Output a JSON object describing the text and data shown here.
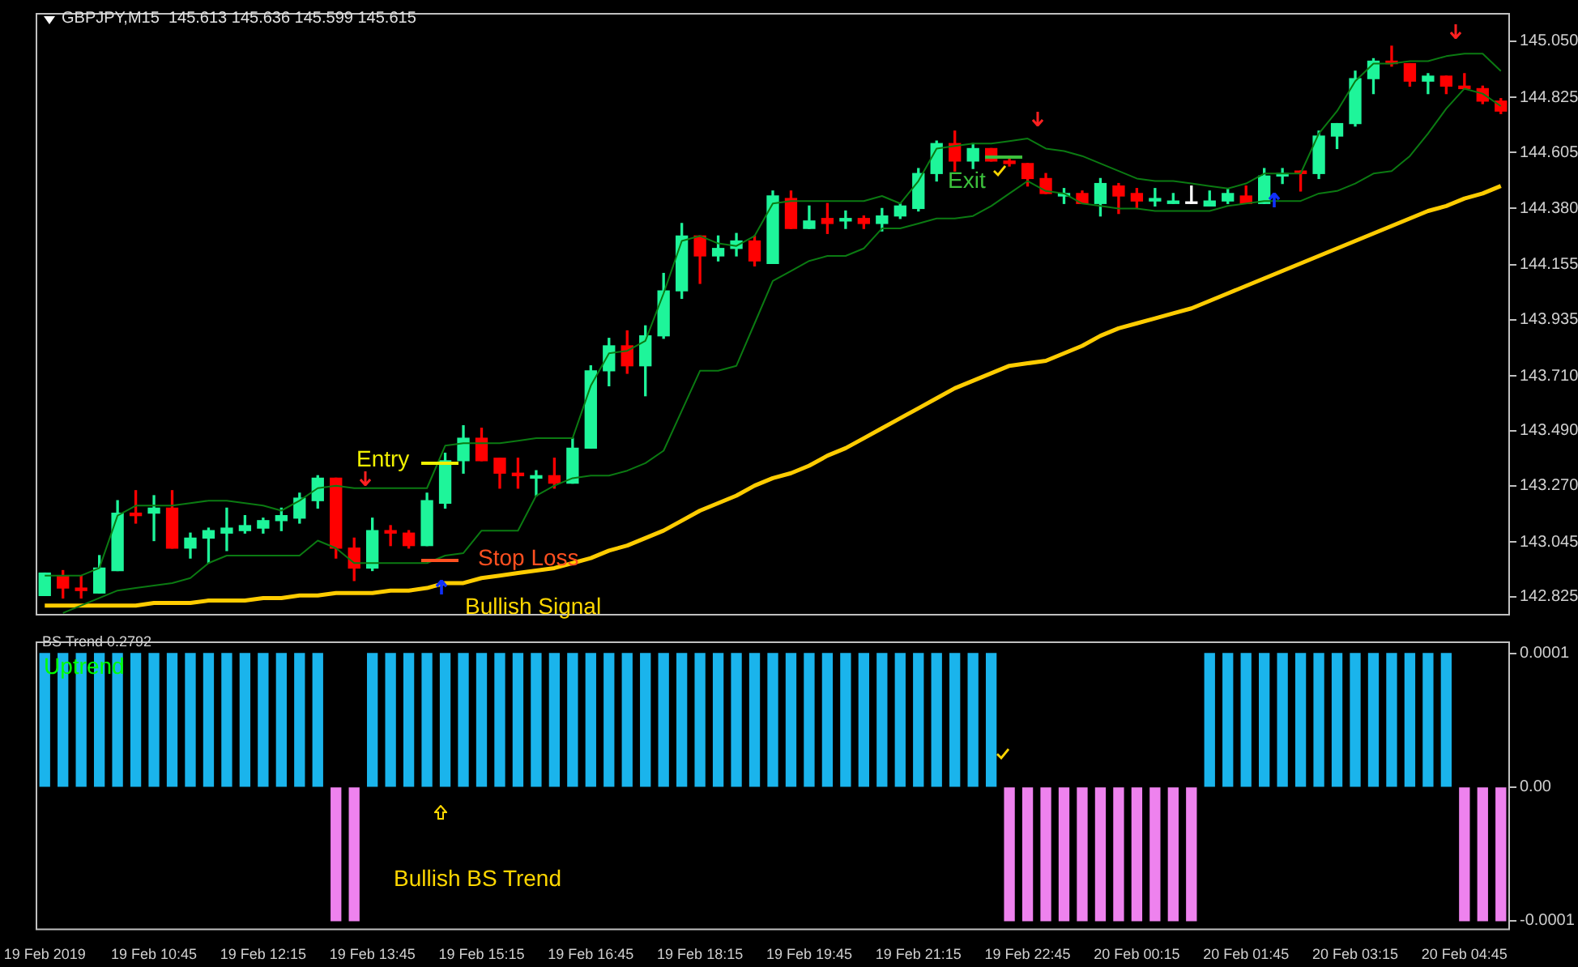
{
  "chart_data": [
    {
      "type": "candlestick",
      "ohlc": [
        [
          142.83,
          142.92,
          142.83,
          142.92
        ],
        [
          142.91,
          142.93,
          142.82,
          142.86
        ],
        [
          142.86,
          142.91,
          142.82,
          142.85
        ],
        [
          142.84,
          142.99,
          142.84,
          142.94
        ],
        [
          142.93,
          143.21,
          142.93,
          143.16
        ],
        [
          143.16,
          143.25,
          143.12,
          143.15
        ],
        [
          143.16,
          143.23,
          143.05,
          143.18
        ],
        [
          143.18,
          143.25,
          143.02,
          143.02
        ],
        [
          143.02,
          143.08,
          142.98,
          143.06
        ],
        [
          143.06,
          143.1,
          142.96,
          143.09
        ],
        [
          143.08,
          143.18,
          143.01,
          143.1
        ],
        [
          143.09,
          143.15,
          143.08,
          143.11
        ],
        [
          143.1,
          143.14,
          143.08,
          143.13
        ],
        [
          143.13,
          143.18,
          143.09,
          143.15
        ],
        [
          143.14,
          143.24,
          143.12,
          143.22
        ],
        [
          143.21,
          143.31,
          143.18,
          143.3
        ],
        [
          143.3,
          143.3,
          142.98,
          143.02
        ],
        [
          143.02,
          143.06,
          142.89,
          142.94
        ],
        [
          142.94,
          143.14,
          142.93,
          143.09
        ],
        [
          143.09,
          143.11,
          143.03,
          143.08
        ],
        [
          143.08,
          143.09,
          143.02,
          143.03
        ],
        [
          143.03,
          143.24,
          143.03,
          143.21
        ],
        [
          143.2,
          143.4,
          143.18,
          143.37
        ],
        [
          143.37,
          143.51,
          143.32,
          143.46
        ],
        [
          143.46,
          143.5,
          143.37,
          143.37
        ],
        [
          143.38,
          143.38,
          143.26,
          143.32
        ],
        [
          143.32,
          143.38,
          143.26,
          143.31
        ],
        [
          143.3,
          143.33,
          143.23,
          143.31
        ],
        [
          143.31,
          143.38,
          143.26,
          143.28
        ],
        [
          143.28,
          143.46,
          143.28,
          143.42
        ],
        [
          143.42,
          143.75,
          143.42,
          143.73
        ],
        [
          143.73,
          143.86,
          143.67,
          143.83
        ],
        [
          143.83,
          143.89,
          143.72,
          143.75
        ],
        [
          143.75,
          143.91,
          143.63,
          143.87
        ],
        [
          143.87,
          144.12,
          143.86,
          144.05
        ],
        [
          144.05,
          144.32,
          144.02,
          144.27
        ],
        [
          144.27,
          144.27,
          144.08,
          144.19
        ],
        [
          144.19,
          144.27,
          144.17,
          144.22
        ],
        [
          144.22,
          144.28,
          144.19,
          144.25
        ],
        [
          144.25,
          144.27,
          144.15,
          144.17
        ],
        [
          144.16,
          144.45,
          144.16,
          144.43
        ],
        [
          144.42,
          144.45,
          144.3,
          144.3
        ],
        [
          144.3,
          144.39,
          144.3,
          144.33
        ],
        [
          144.34,
          144.4,
          144.28,
          144.32
        ],
        [
          144.33,
          144.37,
          144.3,
          144.34
        ],
        [
          144.34,
          144.35,
          144.3,
          144.32
        ],
        [
          144.32,
          144.38,
          144.29,
          144.35
        ],
        [
          144.35,
          144.4,
          144.34,
          144.39
        ],
        [
          144.38,
          144.54,
          144.37,
          144.52
        ],
        [
          144.52,
          144.65,
          144.49,
          144.64
        ],
        [
          144.64,
          144.69,
          144.53,
          144.57
        ],
        [
          144.57,
          144.64,
          144.54,
          144.62
        ],
        [
          144.62,
          144.62,
          144.57,
          144.57
        ],
        [
          144.57,
          144.59,
          144.55,
          144.56
        ],
        [
          144.56,
          144.56,
          144.47,
          144.5
        ],
        [
          144.5,
          144.52,
          144.44,
          144.44
        ],
        [
          144.43,
          144.46,
          144.4,
          144.44
        ],
        [
          144.44,
          144.45,
          144.4,
          144.4
        ],
        [
          144.4,
          144.5,
          144.35,
          144.48
        ],
        [
          144.47,
          144.48,
          144.36,
          144.43
        ],
        [
          144.44,
          144.46,
          144.38,
          144.41
        ],
        [
          144.41,
          144.46,
          144.39,
          144.42
        ],
        [
          144.4,
          144.44,
          144.4,
          144.41
        ],
        [
          144.4,
          144.47,
          144.4,
          144.4
        ],
        [
          144.39,
          144.45,
          144.39,
          144.41
        ],
        [
          144.41,
          144.46,
          144.4,
          144.44
        ],
        [
          144.43,
          144.47,
          144.4,
          144.4
        ],
        [
          144.4,
          144.54,
          144.4,
          144.51
        ],
        [
          144.51,
          144.54,
          144.48,
          144.52
        ],
        [
          144.53,
          144.53,
          144.45,
          144.52
        ],
        [
          144.52,
          144.69,
          144.5,
          144.67
        ],
        [
          144.67,
          144.72,
          144.62,
          144.72
        ],
        [
          144.72,
          144.93,
          144.71,
          144.9
        ],
        [
          144.9,
          144.98,
          144.84,
          144.97
        ],
        [
          144.97,
          145.03,
          144.95,
          144.96
        ],
        [
          144.96,
          144.96,
          144.87,
          144.89
        ],
        [
          144.89,
          144.92,
          144.84,
          144.91
        ],
        [
          144.91,
          144.91,
          144.84,
          144.87
        ],
        [
          144.87,
          144.92,
          144.86,
          144.86
        ],
        [
          144.86,
          144.87,
          144.8,
          144.81
        ],
        [
          144.81,
          144.82,
          144.76,
          144.77
        ]
      ],
      "colors": [
        "#1ef59a",
        "#ff0000",
        "#ff0000",
        "#1ef59a",
        "#1ef59a",
        "#ff0000",
        "#1ef59a",
        "#ff0000",
        "#1ef59a",
        "#1ef59a",
        "#1ef59a",
        "#1ef59a",
        "#1ef59a",
        "#1ef59a",
        "#1ef59a",
        "#1ef59a",
        "#ff0000",
        "#ff0000",
        "#1ef59a",
        "#ff0000",
        "#ff0000",
        "#1ef59a",
        "#1ef59a",
        "#1ef59a",
        "#ff0000",
        "#ff0000",
        "#ff0000",
        "#1ef59a",
        "#ff0000",
        "#1ef59a",
        "#1ef59a",
        "#1ef59a",
        "#ff0000",
        "#1ef59a",
        "#1ef59a",
        "#1ef59a",
        "#ff0000",
        "#1ef59a",
        "#1ef59a",
        "#ff0000",
        "#1ef59a",
        "#ff0000",
        "#1ef59a",
        "#ff0000",
        "#1ef59a",
        "#ff0000",
        "#1ef59a",
        "#1ef59a",
        "#1ef59a",
        "#1ef59a",
        "#ff0000",
        "#1ef59a",
        "#ff0000",
        "#ff0000",
        "#ff0000",
        "#ff0000",
        "#1ef59a",
        "#ff0000",
        "#1ef59a",
        "#ff0000",
        "#ff0000",
        "#1ef59a",
        "#1ef59a",
        "#ffffff",
        "#1ef59a",
        "#1ef59a",
        "#ff0000",
        "#1ef59a",
        "#1ef59a",
        "#ff0000",
        "#1ef59a",
        "#1ef59a",
        "#1ef59a",
        "#1ef59a",
        "#ff0000",
        "#ff0000",
        "#1ef59a",
        "#ff0000",
        "#ff0000",
        "#ff0000",
        "#ff0000"
      ],
      "series": [
        {
          "type": "line",
          "color": "#0b7a12",
          "values": [
            142.91,
            142.91,
            142.91,
            142.94,
            143.15,
            143.19,
            143.19,
            143.19,
            143.2,
            143.21,
            143.21,
            143.2,
            143.19,
            143.17,
            143.21,
            143.26,
            143.27,
            143.26,
            143.26,
            143.26,
            143.26,
            143.26,
            143.43,
            143.44,
            143.44,
            143.44,
            143.45,
            143.46,
            143.46,
            143.46,
            143.67,
            143.8,
            143.81,
            143.85,
            144.04,
            144.25,
            144.27,
            144.24,
            144.23,
            144.27,
            144.4,
            144.41,
            144.41,
            144.41,
            144.41,
            144.41,
            144.43,
            144.4,
            144.49,
            144.62,
            144.63,
            144.64,
            144.64,
            144.65,
            144.66,
            144.62,
            144.61,
            144.59,
            144.56,
            144.53,
            144.5,
            144.49,
            144.49,
            144.48,
            144.47,
            144.46,
            144.48,
            144.52,
            144.52,
            144.52,
            144.68,
            144.77,
            144.89,
            144.96,
            144.96,
            144.97,
            144.97,
            144.99,
            145.0,
            145.0,
            144.93
          ]
        },
        {
          "type": "line",
          "color": "#0b7a12",
          "values": [
            null,
            142.76,
            142.79,
            142.82,
            142.85,
            142.86,
            142.87,
            142.88,
            142.9,
            142.96,
            142.99,
            142.99,
            142.99,
            142.99,
            142.99,
            143.05,
            143.02,
            142.96,
            142.96,
            142.96,
            142.96,
            142.96,
            142.99,
            143.0,
            143.09,
            143.09,
            143.09,
            143.23,
            143.27,
            143.3,
            143.31,
            143.31,
            143.33,
            143.36,
            143.41,
            143.57,
            143.73,
            143.73,
            143.75,
            143.92,
            144.09,
            144.13,
            144.17,
            144.19,
            144.19,
            144.22,
            144.3,
            144.3,
            144.32,
            144.34,
            144.34,
            144.35,
            144.39,
            144.44,
            144.49,
            144.45,
            144.44,
            144.4,
            144.39,
            144.38,
            144.38,
            144.37,
            144.37,
            144.37,
            144.37,
            144.39,
            144.4,
            144.41,
            144.41,
            144.41,
            144.44,
            144.45,
            144.48,
            144.52,
            144.53,
            144.59,
            144.68,
            144.78,
            144.86,
            144.84,
            144.79
          ]
        },
        {
          "type": "line",
          "color": "#ffcc00",
          "values": [
            142.79,
            142.79,
            142.79,
            142.79,
            142.79,
            142.79,
            142.8,
            142.8,
            142.8,
            142.81,
            142.81,
            142.81,
            142.82,
            142.82,
            142.83,
            142.83,
            142.84,
            142.84,
            142.84,
            142.85,
            142.85,
            142.86,
            142.88,
            142.88,
            142.9,
            142.91,
            142.92,
            142.93,
            142.94,
            142.96,
            142.98,
            143.01,
            143.03,
            143.06,
            143.09,
            143.13,
            143.17,
            143.2,
            143.23,
            143.27,
            143.3,
            143.32,
            143.35,
            143.39,
            143.42,
            143.46,
            143.5,
            143.54,
            143.58,
            143.62,
            143.66,
            143.69,
            143.72,
            143.75,
            143.76,
            143.77,
            143.8,
            143.83,
            143.87,
            143.9,
            143.92,
            143.94,
            143.96,
            143.98,
            144.01,
            144.04,
            144.07,
            144.1,
            144.13,
            144.16,
            144.19,
            144.22,
            144.25,
            144.28,
            144.31,
            144.34,
            144.37,
            144.39,
            144.42,
            144.44,
            144.47
          ]
        }
      ],
      "ylim": [
        142.75,
        145.163
      ],
      "yticks": [
        {
          "value": 142.825,
          "label": "142.825"
        },
        {
          "value": 143.045,
          "label": "143.045"
        },
        {
          "value": 143.27,
          "label": "143.270"
        },
        {
          "value": 143.49,
          "label": "143.490"
        },
        {
          "value": 143.71,
          "label": "143.710"
        },
        {
          "value": 143.935,
          "label": "143.935"
        },
        {
          "value": 144.155,
          "label": "144.155"
        },
        {
          "value": 144.38,
          "label": "144.380"
        },
        {
          "value": 144.605,
          "label": "144.605"
        },
        {
          "value": 144.825,
          "label": "144.825"
        },
        {
          "value": 145.05,
          "label": "145.050"
        }
      ],
      "tick_labels": "y",
      "grid": false,
      "legend": false,
      "annotations": [
        "GBPJPY,M15  145.613 145.636 145.599 145.615",
        "Entry",
        "Stop Loss",
        "Bullish Signal",
        "Exit"
      ]
    },
    {
      "type": "bar",
      "categories": [
        "19 Feb 2019",
        null,
        null,
        null,
        null,
        null,
        "19 Feb 10:45",
        null,
        null,
        null,
        null,
        null,
        "19 Feb 12:15",
        null,
        null,
        null,
        null,
        null,
        "19 Feb 13:45",
        null,
        null,
        null,
        null,
        null,
        "19 Feb 15:15",
        null,
        null,
        null,
        null,
        null,
        "19 Feb 16:45",
        null,
        null,
        null,
        null,
        null,
        "19 Feb 18:15",
        null,
        null,
        null,
        null,
        null,
        "19 Feb 19:45",
        null,
        null,
        null,
        null,
        null,
        "19 Feb 21:15",
        null,
        null,
        null,
        null,
        null,
        "19 Feb 22:45",
        null,
        null,
        null,
        null,
        null,
        "20 Feb 00:15",
        null,
        null,
        null,
        null,
        null,
        "20 Feb 01:45",
        null,
        null,
        null,
        null,
        null,
        "20 Feb 03:15",
        null,
        null,
        null,
        null,
        null,
        "20 Feb 04:45",
        null,
        null
      ],
      "values": [
        0.0001,
        0.0001,
        0.0001,
        0.0001,
        0.0001,
        0.0001,
        0.0001,
        0.0001,
        0.0001,
        0.0001,
        0.0001,
        0.0001,
        0.0001,
        0.0001,
        0.0001,
        0.0001,
        -0.0001,
        -0.0001,
        0.0001,
        0.0001,
        0.0001,
        0.0001,
        0.0001,
        0.0001,
        0.0001,
        0.0001,
        0.0001,
        0.0001,
        0.0001,
        0.0001,
        0.0001,
        0.0001,
        0.0001,
        0.0001,
        0.0001,
        0.0001,
        0.0001,
        0.0001,
        0.0001,
        0.0001,
        0.0001,
        0.0001,
        0.0001,
        0.0001,
        0.0001,
        0.0001,
        0.0001,
        0.0001,
        0.0001,
        0.0001,
        0.0001,
        0.0001,
        0.0001,
        -0.0001,
        -0.0001,
        -0.0001,
        -0.0001,
        -0.0001,
        -0.0001,
        -0.0001,
        -0.0001,
        -0.0001,
        -0.0001,
        -0.0001,
        0.0001,
        0.0001,
        0.0001,
        0.0001,
        0.0001,
        0.0001,
        0.0001,
        0.0001,
        0.0001,
        0.0001,
        0.0001,
        0.0001,
        0.0001,
        0.0001,
        -0.0001,
        -0.0001,
        -0.0001
      ],
      "colors": [
        "#1ab4ec",
        "#1ab4ec",
        "#1ab4ec",
        "#1ab4ec",
        "#1ab4ec",
        "#1ab4ec",
        "#1ab4ec",
        "#1ab4ec",
        "#1ab4ec",
        "#1ab4ec",
        "#1ab4ec",
        "#1ab4ec",
        "#1ab4ec",
        "#1ab4ec",
        "#1ab4ec",
        "#1ab4ec",
        "#ee82ee",
        "#ee82ee",
        "#1ab4ec",
        "#1ab4ec",
        "#1ab4ec",
        "#1ab4ec",
        "#1ab4ec",
        "#1ab4ec",
        "#1ab4ec",
        "#1ab4ec",
        "#1ab4ec",
        "#1ab4ec",
        "#1ab4ec",
        "#1ab4ec",
        "#1ab4ec",
        "#1ab4ec",
        "#1ab4ec",
        "#1ab4ec",
        "#1ab4ec",
        "#1ab4ec",
        "#1ab4ec",
        "#1ab4ec",
        "#1ab4ec",
        "#1ab4ec",
        "#1ab4ec",
        "#1ab4ec",
        "#1ab4ec",
        "#1ab4ec",
        "#1ab4ec",
        "#1ab4ec",
        "#1ab4ec",
        "#1ab4ec",
        "#1ab4ec",
        "#1ab4ec",
        "#1ab4ec",
        "#1ab4ec",
        "#1ab4ec",
        "#ee82ee",
        "#ee82ee",
        "#ee82ee",
        "#ee82ee",
        "#ee82ee",
        "#ee82ee",
        "#ee82ee",
        "#ee82ee",
        "#ee82ee",
        "#ee82ee",
        "#ee82ee",
        "#1ab4ec",
        "#1ab4ec",
        "#1ab4ec",
        "#1ab4ec",
        "#1ab4ec",
        "#1ab4ec",
        "#1ab4ec",
        "#1ab4ec",
        "#1ab4ec",
        "#1ab4ec",
        "#1ab4ec",
        "#1ab4ec",
        "#1ab4ec",
        "#1ab4ec",
        "#ee82ee",
        "#ee82ee",
        "#ee82ee"
      ],
      "ylim": [
        -0.000107,
        0.000109
      ],
      "yticks": [
        {
          "value": -0.0001,
          "label": "-0.0001"
        },
        {
          "value": 0,
          "label": "0.00"
        },
        {
          "value": 0.0001,
          "label": "0.0001"
        }
      ],
      "grid": false,
      "legend": false,
      "annotations": [
        "BS Trend 0.2792",
        "Uptrend",
        "Bullish BS Trend"
      ]
    }
  ]
}
